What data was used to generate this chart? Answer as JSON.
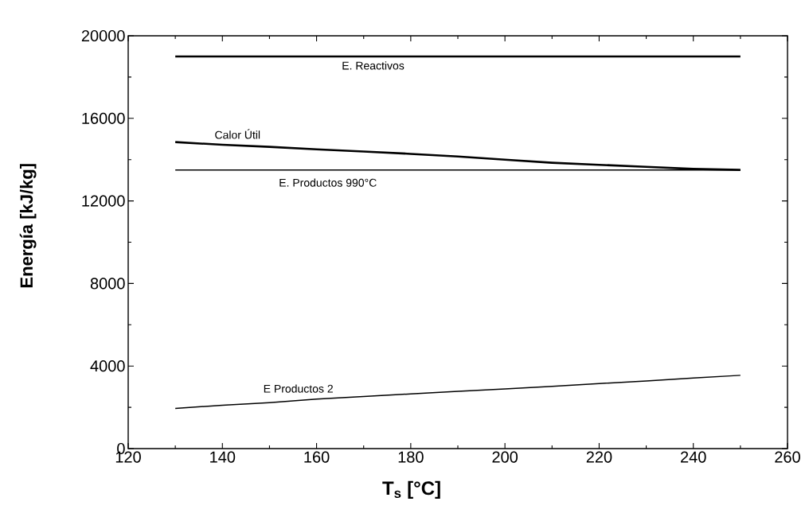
{
  "chart_data": {
    "type": "line",
    "xlabel": "T$_{s}$ [°C]",
    "ylabel": "Energía [kJ/kg]",
    "x": [
      130,
      140,
      150,
      160,
      170,
      180,
      190,
      200,
      210,
      220,
      230,
      240,
      250
    ],
    "series": [
      {
        "name": "E. Reactivos",
        "color": "#000000",
        "values": [
          19000,
          19000,
          19000,
          19000,
          19000,
          19000,
          19000,
          19000,
          19000,
          19000,
          19000,
          19000,
          19000
        ]
      },
      {
        "name": "Calor Útil",
        "color": "#000000",
        "values": [
          14850,
          14720,
          14620,
          14500,
          14390,
          14280,
          14150,
          14000,
          13850,
          13750,
          13650,
          13550,
          13500
        ]
      },
      {
        "name": "E. Productos 990°C",
        "color": "#000000",
        "values": [
          13500,
          13500,
          13500,
          13500,
          13500,
          13500,
          13500,
          13500,
          13500,
          13500,
          13500,
          13500,
          13500
        ]
      },
      {
        "name": "E Productos 2",
        "color": "#000000",
        "values": [
          1950,
          2100,
          2230,
          2400,
          2520,
          2650,
          2770,
          2890,
          3020,
          3150,
          3280,
          3420,
          3550
        ]
      }
    ],
    "xlim": [
      120,
      260
    ],
    "xticks": [
      120,
      140,
      160,
      180,
      200,
      220,
      240,
      260
    ],
    "ylim": [
      0,
      20000
    ],
    "yticks": [
      0,
      4000,
      8000,
      12000,
      16000,
      20000
    ]
  }
}
